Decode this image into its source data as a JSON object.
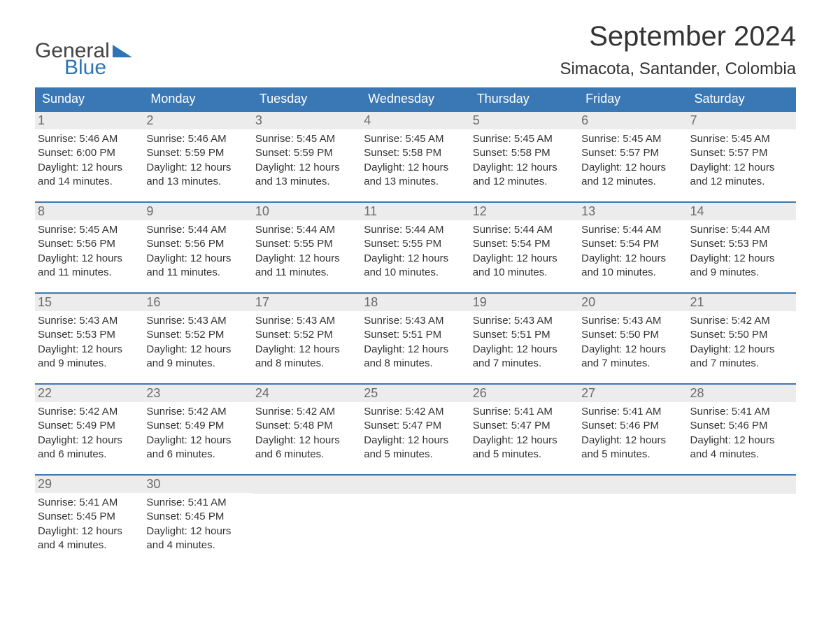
{
  "brand": {
    "word1": "General",
    "word2": "Blue",
    "word1_color": "#444444",
    "word2_color": "#2e75b6",
    "triangle_color": "#2e75b6"
  },
  "title": {
    "month": "September 2024",
    "location": "Simacota, Santander, Colombia",
    "month_fontsize": 40,
    "location_fontsize": 24,
    "text_color": "#333333"
  },
  "calendar": {
    "header_bg": "#3a78b5",
    "header_text_color": "#ffffff",
    "week_border_color": "#3a78b5",
    "daynum_bg": "#ececec",
    "daynum_color": "#6b6b6b",
    "content_color": "#333333",
    "content_fontsize": 15,
    "columns": [
      "Sunday",
      "Monday",
      "Tuesday",
      "Wednesday",
      "Thursday",
      "Friday",
      "Saturday"
    ],
    "weeks": [
      [
        {
          "num": "1",
          "sunrise": "Sunrise: 5:46 AM",
          "sunset": "Sunset: 6:00 PM",
          "day1": "Daylight: 12 hours",
          "day2": "and 14 minutes."
        },
        {
          "num": "2",
          "sunrise": "Sunrise: 5:46 AM",
          "sunset": "Sunset: 5:59 PM",
          "day1": "Daylight: 12 hours",
          "day2": "and 13 minutes."
        },
        {
          "num": "3",
          "sunrise": "Sunrise: 5:45 AM",
          "sunset": "Sunset: 5:59 PM",
          "day1": "Daylight: 12 hours",
          "day2": "and 13 minutes."
        },
        {
          "num": "4",
          "sunrise": "Sunrise: 5:45 AM",
          "sunset": "Sunset: 5:58 PM",
          "day1": "Daylight: 12 hours",
          "day2": "and 13 minutes."
        },
        {
          "num": "5",
          "sunrise": "Sunrise: 5:45 AM",
          "sunset": "Sunset: 5:58 PM",
          "day1": "Daylight: 12 hours",
          "day2": "and 12 minutes."
        },
        {
          "num": "6",
          "sunrise": "Sunrise: 5:45 AM",
          "sunset": "Sunset: 5:57 PM",
          "day1": "Daylight: 12 hours",
          "day2": "and 12 minutes."
        },
        {
          "num": "7",
          "sunrise": "Sunrise: 5:45 AM",
          "sunset": "Sunset: 5:57 PM",
          "day1": "Daylight: 12 hours",
          "day2": "and 12 minutes."
        }
      ],
      [
        {
          "num": "8",
          "sunrise": "Sunrise: 5:45 AM",
          "sunset": "Sunset: 5:56 PM",
          "day1": "Daylight: 12 hours",
          "day2": "and 11 minutes."
        },
        {
          "num": "9",
          "sunrise": "Sunrise: 5:44 AM",
          "sunset": "Sunset: 5:56 PM",
          "day1": "Daylight: 12 hours",
          "day2": "and 11 minutes."
        },
        {
          "num": "10",
          "sunrise": "Sunrise: 5:44 AM",
          "sunset": "Sunset: 5:55 PM",
          "day1": "Daylight: 12 hours",
          "day2": "and 11 minutes."
        },
        {
          "num": "11",
          "sunrise": "Sunrise: 5:44 AM",
          "sunset": "Sunset: 5:55 PM",
          "day1": "Daylight: 12 hours",
          "day2": "and 10 minutes."
        },
        {
          "num": "12",
          "sunrise": "Sunrise: 5:44 AM",
          "sunset": "Sunset: 5:54 PM",
          "day1": "Daylight: 12 hours",
          "day2": "and 10 minutes."
        },
        {
          "num": "13",
          "sunrise": "Sunrise: 5:44 AM",
          "sunset": "Sunset: 5:54 PM",
          "day1": "Daylight: 12 hours",
          "day2": "and 10 minutes."
        },
        {
          "num": "14",
          "sunrise": "Sunrise: 5:44 AM",
          "sunset": "Sunset: 5:53 PM",
          "day1": "Daylight: 12 hours",
          "day2": "and 9 minutes."
        }
      ],
      [
        {
          "num": "15",
          "sunrise": "Sunrise: 5:43 AM",
          "sunset": "Sunset: 5:53 PM",
          "day1": "Daylight: 12 hours",
          "day2": "and 9 minutes."
        },
        {
          "num": "16",
          "sunrise": "Sunrise: 5:43 AM",
          "sunset": "Sunset: 5:52 PM",
          "day1": "Daylight: 12 hours",
          "day2": "and 9 minutes."
        },
        {
          "num": "17",
          "sunrise": "Sunrise: 5:43 AM",
          "sunset": "Sunset: 5:52 PM",
          "day1": "Daylight: 12 hours",
          "day2": "and 8 minutes."
        },
        {
          "num": "18",
          "sunrise": "Sunrise: 5:43 AM",
          "sunset": "Sunset: 5:51 PM",
          "day1": "Daylight: 12 hours",
          "day2": "and 8 minutes."
        },
        {
          "num": "19",
          "sunrise": "Sunrise: 5:43 AM",
          "sunset": "Sunset: 5:51 PM",
          "day1": "Daylight: 12 hours",
          "day2": "and 7 minutes."
        },
        {
          "num": "20",
          "sunrise": "Sunrise: 5:43 AM",
          "sunset": "Sunset: 5:50 PM",
          "day1": "Daylight: 12 hours",
          "day2": "and 7 minutes."
        },
        {
          "num": "21",
          "sunrise": "Sunrise: 5:42 AM",
          "sunset": "Sunset: 5:50 PM",
          "day1": "Daylight: 12 hours",
          "day2": "and 7 minutes."
        }
      ],
      [
        {
          "num": "22",
          "sunrise": "Sunrise: 5:42 AM",
          "sunset": "Sunset: 5:49 PM",
          "day1": "Daylight: 12 hours",
          "day2": "and 6 minutes."
        },
        {
          "num": "23",
          "sunrise": "Sunrise: 5:42 AM",
          "sunset": "Sunset: 5:49 PM",
          "day1": "Daylight: 12 hours",
          "day2": "and 6 minutes."
        },
        {
          "num": "24",
          "sunrise": "Sunrise: 5:42 AM",
          "sunset": "Sunset: 5:48 PM",
          "day1": "Daylight: 12 hours",
          "day2": "and 6 minutes."
        },
        {
          "num": "25",
          "sunrise": "Sunrise: 5:42 AM",
          "sunset": "Sunset: 5:47 PM",
          "day1": "Daylight: 12 hours",
          "day2": "and 5 minutes."
        },
        {
          "num": "26",
          "sunrise": "Sunrise: 5:41 AM",
          "sunset": "Sunset: 5:47 PM",
          "day1": "Daylight: 12 hours",
          "day2": "and 5 minutes."
        },
        {
          "num": "27",
          "sunrise": "Sunrise: 5:41 AM",
          "sunset": "Sunset: 5:46 PM",
          "day1": "Daylight: 12 hours",
          "day2": "and 5 minutes."
        },
        {
          "num": "28",
          "sunrise": "Sunrise: 5:41 AM",
          "sunset": "Sunset: 5:46 PM",
          "day1": "Daylight: 12 hours",
          "day2": "and 4 minutes."
        }
      ],
      [
        {
          "num": "29",
          "sunrise": "Sunrise: 5:41 AM",
          "sunset": "Sunset: 5:45 PM",
          "day1": "Daylight: 12 hours",
          "day2": "and 4 minutes."
        },
        {
          "num": "30",
          "sunrise": "Sunrise: 5:41 AM",
          "sunset": "Sunset: 5:45 PM",
          "day1": "Daylight: 12 hours",
          "day2": "and 4 minutes."
        },
        {
          "empty": true
        },
        {
          "empty": true
        },
        {
          "empty": true
        },
        {
          "empty": true
        },
        {
          "empty": true
        }
      ]
    ]
  }
}
